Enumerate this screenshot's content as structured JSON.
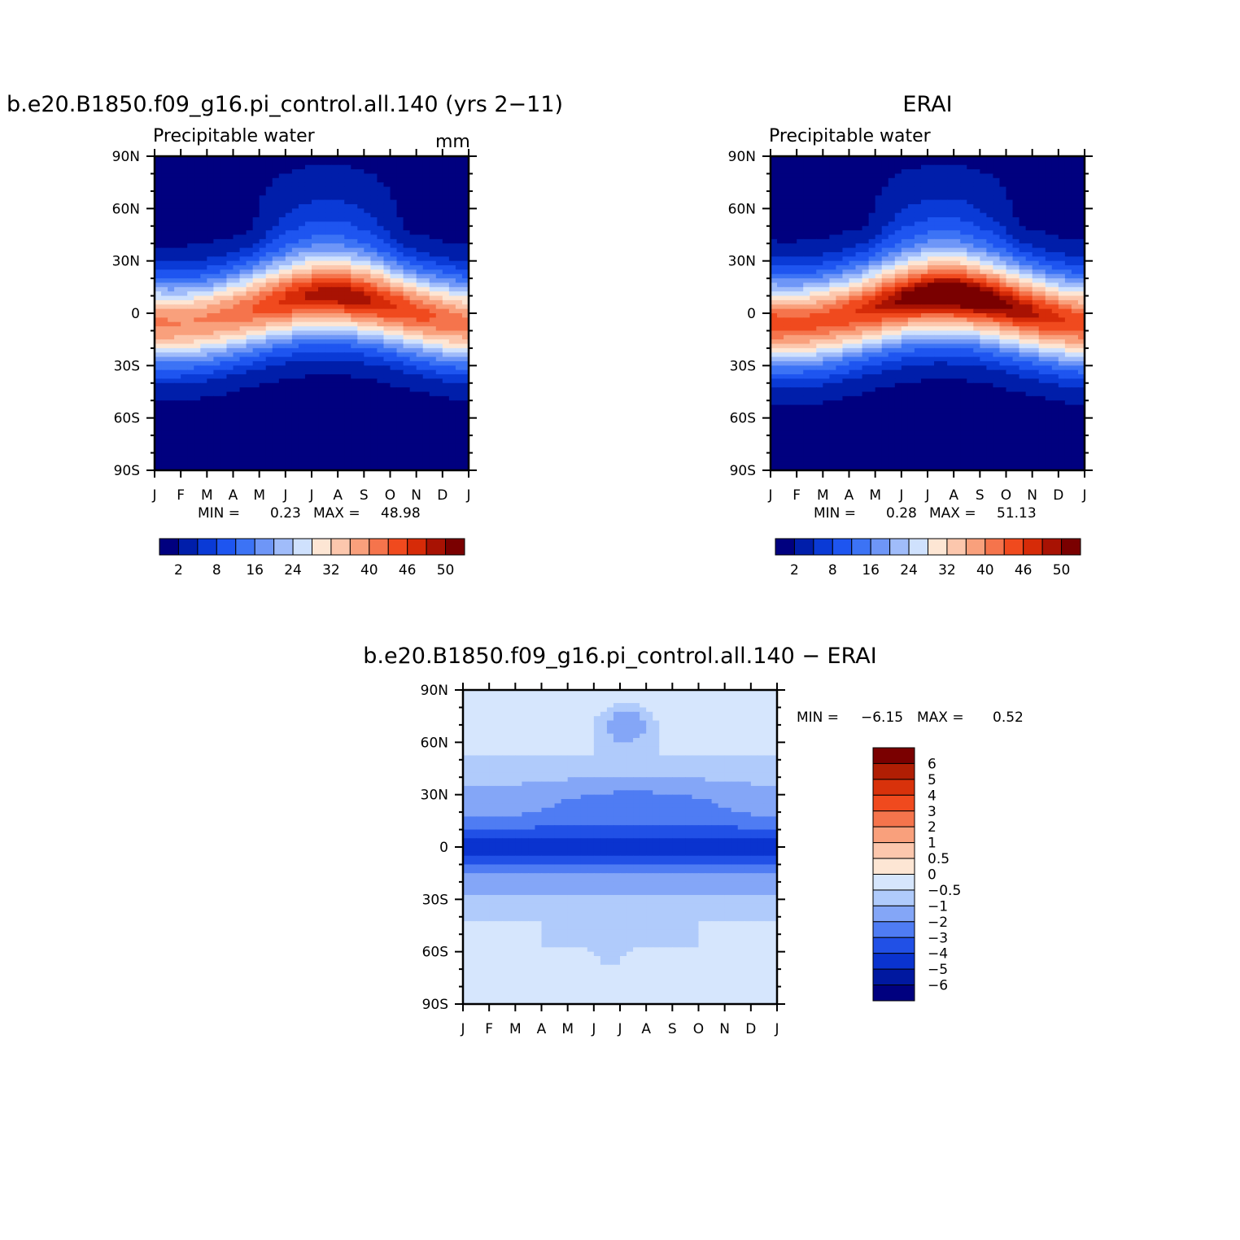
{
  "chart_data": [
    {
      "type": "heatmap",
      "id": "model",
      "title": "b.e20.B1850.f09_g16.pi_control.all.140 (yrs 2−11)",
      "subtitle": "Precipitable water",
      "units": "mm",
      "x_tick_labels": [
        "J",
        "F",
        "M",
        "A",
        "M",
        "J",
        "J",
        "A",
        "S",
        "O",
        "N",
        "D",
        "J"
      ],
      "y_tick_labels": [
        "90N",
        "60N",
        "30N",
        "0",
        "30S",
        "60S",
        "90S"
      ],
      "ylim": [
        -90,
        90
      ],
      "stats": {
        "min_label": "MIN =",
        "min": "0.23",
        "max_label": "MAX =",
        "max": "48.98"
      },
      "colorbar": {
        "orientation": "horizontal",
        "tick_labels": [
          "2",
          "8",
          "16",
          "24",
          "32",
          "40",
          "46",
          "50"
        ]
      },
      "field": {
        "equator_peak": 44,
        "seasonal_amp": 8,
        "pole": 1,
        "width": 22,
        "noise": 0
      }
    },
    {
      "type": "heatmap",
      "id": "obs",
      "title": "ERAI",
      "subtitle": "Precipitable water",
      "x_tick_labels": [
        "J",
        "F",
        "M",
        "A",
        "M",
        "J",
        "J",
        "A",
        "S",
        "O",
        "N",
        "D",
        "J"
      ],
      "y_tick_labels": [
        "90N",
        "60N",
        "30N",
        "0",
        "30S",
        "60S",
        "90S"
      ],
      "ylim": [
        -90,
        90
      ],
      "stats": {
        "min_label": "MIN =",
        "min": "0.28",
        "max_label": "MAX =",
        "max": "51.13"
      },
      "colorbar": {
        "orientation": "horizontal",
        "tick_labels": [
          "2",
          "8",
          "16",
          "24",
          "32",
          "40",
          "46",
          "50"
        ]
      },
      "field": {
        "equator_peak": 48,
        "seasonal_amp": 8,
        "pole": 1,
        "width": 23,
        "noise": 0
      }
    },
    {
      "type": "heatmap",
      "id": "diff",
      "title": "b.e20.B1850.f09_g16.pi_control.all.140 − ERAI",
      "x_tick_labels": [
        "J",
        "F",
        "M",
        "A",
        "M",
        "J",
        "J",
        "A",
        "S",
        "O",
        "N",
        "D",
        "J"
      ],
      "y_tick_labels": [
        "90N",
        "60N",
        "30N",
        "0",
        "30S",
        "60S",
        "90S"
      ],
      "ylim": [
        -90,
        90
      ],
      "stats": {
        "min_label": "MIN =",
        "min": "−6.15",
        "max_label": "MAX =",
        "max": "0.52"
      },
      "colorbar": {
        "orientation": "vertical",
        "tick_labels": [
          "6",
          "5",
          "4",
          "3",
          "2",
          "1",
          "0.5",
          "0",
          "−0.5",
          "−1",
          "−2",
          "−3",
          "−4",
          "−5",
          "−6"
        ]
      }
    }
  ],
  "colors": {
    "pw_palette": [
      "#00007f",
      "#001eaa",
      "#0a3ad6",
      "#1e55f0",
      "#3c73f5",
      "#6e96f7",
      "#a0bcfa",
      "#cfe1fd",
      "#fde6d4",
      "#fcc7ad",
      "#f9a07c",
      "#f5744c",
      "#f04a1e",
      "#d62b08",
      "#a81203",
      "#7a0000"
    ],
    "diff_palette": [
      "#7a0000",
      "#b01e04",
      "#d8320b",
      "#f04a1e",
      "#f5744c",
      "#f9a07c",
      "#fcc7ad",
      "#fde6d4",
      "#d6e6fd",
      "#b0cbfb",
      "#84a6f7",
      "#4f7cf3",
      "#2150e6",
      "#0a33cf",
      "#0018a0",
      "#00007f"
    ]
  }
}
